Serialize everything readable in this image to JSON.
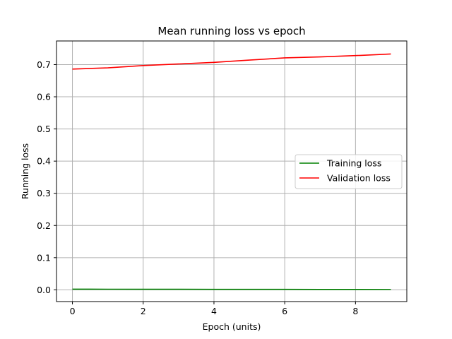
{
  "chart_data": {
    "type": "line",
    "title": "Mean running loss vs epoch",
    "xlabel": "Epoch (units)",
    "ylabel": "Running loss",
    "xlim": [
      -0.45,
      9.45
    ],
    "ylim": [
      -0.0365,
      0.7735
    ],
    "xticks": [
      0,
      2,
      4,
      6,
      8
    ],
    "yticks": [
      0.0,
      0.1,
      0.2,
      0.3,
      0.4,
      0.5,
      0.6,
      0.7
    ],
    "ytick_labels": [
      "0.0",
      "0.1",
      "0.2",
      "0.3",
      "0.4",
      "0.5",
      "0.6",
      "0.7"
    ],
    "grid": true,
    "legend_position": "center-right",
    "x": [
      0,
      1,
      2,
      3,
      4,
      5,
      6,
      7,
      8,
      9
    ],
    "series": [
      {
        "name": "Training loss",
        "color": "#008000",
        "values": [
          0.002,
          0.0019,
          0.0018,
          0.0017,
          0.0016,
          0.0015,
          0.0014,
          0.0013,
          0.0012,
          0.0011
        ]
      },
      {
        "name": "Validation loss",
        "color": "#ff0000",
        "values": [
          0.686,
          0.69,
          0.697,
          0.702,
          0.707,
          0.714,
          0.721,
          0.724,
          0.728,
          0.733
        ]
      }
    ]
  }
}
